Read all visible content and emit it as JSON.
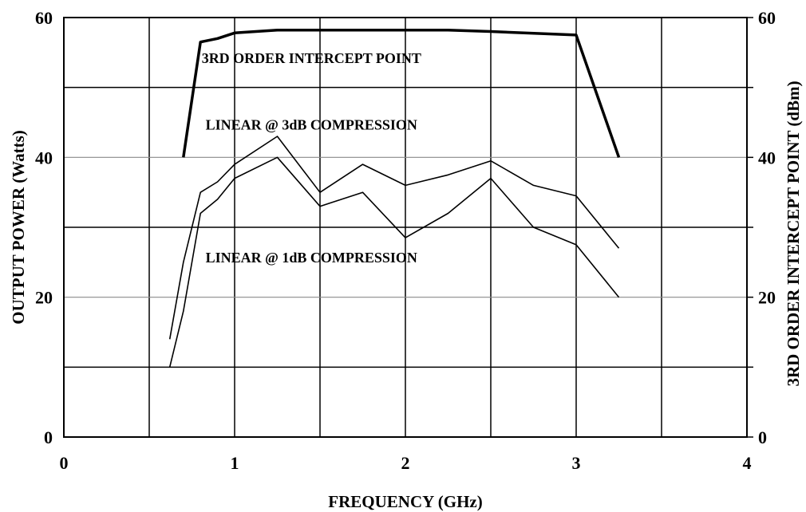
{
  "chart_data": {
    "type": "line",
    "title": "",
    "xlabel": "FREQUENCY (GHz)",
    "ylabel": "OUTPUT POWER (Watts)",
    "y2label": "3RD ORDER INTERCEPT POINT (dBm)",
    "xlim": [
      0,
      4
    ],
    "ylim": [
      0,
      60
    ],
    "y2lim": [
      0,
      60
    ],
    "xticks": [
      0,
      1,
      2,
      3,
      4
    ],
    "yticks": [
      0,
      20,
      40,
      60
    ],
    "y2ticks": [
      0,
      20,
      40,
      60
    ],
    "grid": true,
    "series": [
      {
        "name": "3RD ORDER INTERCEPT POINT",
        "axis": "right",
        "x": [
          0.7,
          0.8,
          0.9,
          1.0,
          1.25,
          1.5,
          2.0,
          2.25,
          2.5,
          3.0,
          3.25
        ],
        "y": [
          40,
          56.5,
          57,
          57.8,
          58.2,
          58.2,
          58.2,
          58.2,
          58,
          57.5,
          40
        ]
      },
      {
        "name": "LINEAR @ 3dB COMPRESSION",
        "axis": "left",
        "x": [
          0.62,
          0.7,
          0.8,
          0.9,
          1.0,
          1.25,
          1.5,
          1.75,
          2.0,
          2.25,
          2.5,
          2.75,
          3.0,
          3.25
        ],
        "y": [
          14,
          25,
          35,
          36.5,
          39,
          43,
          35,
          39,
          36,
          37.5,
          39.5,
          36,
          34.5,
          27
        ]
      },
      {
        "name": "LINEAR @ 1dB COMPRESSION",
        "axis": "left",
        "x": [
          0.62,
          0.7,
          0.8,
          0.9,
          1.0,
          1.25,
          1.5,
          1.75,
          2.0,
          2.25,
          2.5,
          2.75,
          3.0,
          3.25
        ],
        "y": [
          10,
          18,
          32,
          34,
          37,
          40,
          33,
          35,
          28.5,
          32,
          37,
          30,
          27.5,
          20
        ]
      }
    ],
    "annotations": [
      {
        "text": "3RD ORDER INTERCEPT POINT",
        "x": 1.45,
        "y": 53.5
      },
      {
        "text": "LINEAR @ 3dB COMPRESSION",
        "x": 1.45,
        "y": 44
      },
      {
        "text": "LINEAR @ 1dB COMPRESSION",
        "x": 1.45,
        "y": 25
      }
    ]
  }
}
